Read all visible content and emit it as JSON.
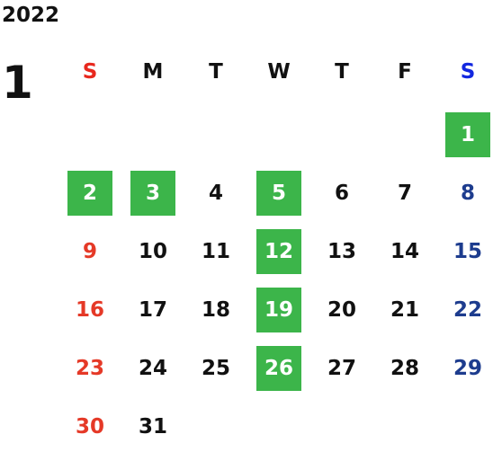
{
  "calendar": {
    "year": "2022",
    "month": "1",
    "weekday_headers": [
      "S",
      "M",
      "T",
      "W",
      "T",
      "F",
      "S"
    ],
    "weeks": [
      [
        null,
        null,
        null,
        null,
        null,
        null,
        {
          "day": "1",
          "highlight": true
        }
      ],
      [
        {
          "day": "2",
          "highlight": true
        },
        {
          "day": "3",
          "highlight": true
        },
        {
          "day": "4",
          "highlight": false
        },
        {
          "day": "5",
          "highlight": true
        },
        {
          "day": "6",
          "highlight": false
        },
        {
          "day": "7",
          "highlight": false
        },
        {
          "day": "8",
          "highlight": false
        }
      ],
      [
        {
          "day": "9",
          "highlight": false
        },
        {
          "day": "10",
          "highlight": false
        },
        {
          "day": "11",
          "highlight": false
        },
        {
          "day": "12",
          "highlight": true
        },
        {
          "day": "13",
          "highlight": false
        },
        {
          "day": "14",
          "highlight": false
        },
        {
          "day": "15",
          "highlight": false
        }
      ],
      [
        {
          "day": "16",
          "highlight": false
        },
        {
          "day": "17",
          "highlight": false
        },
        {
          "day": "18",
          "highlight": false
        },
        {
          "day": "19",
          "highlight": true
        },
        {
          "day": "20",
          "highlight": false
        },
        {
          "day": "21",
          "highlight": false
        },
        {
          "day": "22",
          "highlight": false
        }
      ],
      [
        {
          "day": "23",
          "highlight": false
        },
        {
          "day": "24",
          "highlight": false
        },
        {
          "day": "25",
          "highlight": false
        },
        {
          "day": "26",
          "highlight": true
        },
        {
          "day": "27",
          "highlight": false
        },
        {
          "day": "28",
          "highlight": false
        },
        {
          "day": "29",
          "highlight": false
        }
      ],
      [
        {
          "day": "30",
          "highlight": false
        },
        {
          "day": "31",
          "highlight": false
        },
        null,
        null,
        null,
        null,
        null
      ]
    ]
  },
  "colors": {
    "highlight_bg": "#3cb54a",
    "highlight_text": "#ffffff",
    "sunday_header": "#e8281e",
    "saturday_header": "#1328e0",
    "sunday_date": "#e53927",
    "saturday_date": "#1d3c8e",
    "weekday_text": "#111111"
  }
}
